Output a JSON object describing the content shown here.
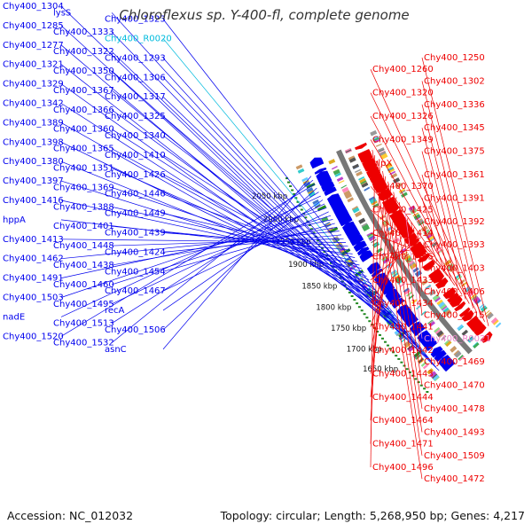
{
  "title": "Chloroflexus sp. Y-400-fl, complete genome",
  "accession": "Accession: NC_012032",
  "summary": "Topology: circular; Length: 5,268,950 bp; Genes: 4,217",
  "colors": {
    "forward": "#0000ee",
    "reverse": "#ee0000",
    "rna_forward": "#00bbdd",
    "rna_reverse": "#ee88cc",
    "backbone": "#777777",
    "tick": "#228822"
  },
  "ticks": [
    {
      "label": "1650 kbp"
    },
    {
      "label": "1700 kbp"
    },
    {
      "label": "1750 kbp"
    },
    {
      "label": "1800 kbp"
    },
    {
      "label": "1850 kbp"
    },
    {
      "label": "1900 kbp"
    },
    {
      "label": "1950 kbp"
    },
    {
      "label": "2000 kbp"
    },
    {
      "label": "2050 kbp"
    }
  ],
  "left_labels": [
    {
      "text": "Chy400_1304",
      "color": "forward"
    },
    {
      "text": "lysS",
      "color": "forward"
    },
    {
      "text": "Chy400_1323",
      "color": "forward"
    },
    {
      "text": "Chy400_1285",
      "color": "forward"
    },
    {
      "text": "Chy400_1333",
      "color": "forward"
    },
    {
      "text": "Chy400_R0020",
      "color": "rna_forward"
    },
    {
      "text": "Chy400_1277",
      "color": "forward"
    },
    {
      "text": "Chy400_1322",
      "color": "forward"
    },
    {
      "text": "Chy400_1293",
      "color": "forward"
    },
    {
      "text": "Chy400_1321",
      "color": "forward"
    },
    {
      "text": "Chy400_1350",
      "color": "forward"
    },
    {
      "text": "Chy400_1306",
      "color": "forward"
    },
    {
      "text": "Chy400_1329",
      "color": "forward"
    },
    {
      "text": "Chy400_1367",
      "color": "forward"
    },
    {
      "text": "Chy400_1317",
      "color": "forward"
    },
    {
      "text": "Chy400_1342",
      "color": "forward"
    },
    {
      "text": "Chy400_1366",
      "color": "forward"
    },
    {
      "text": "Chy400_1325",
      "color": "forward"
    },
    {
      "text": "Chy400_1389",
      "color": "forward"
    },
    {
      "text": "Chy400_1360",
      "color": "forward"
    },
    {
      "text": "Chy400_1340",
      "color": "forward"
    },
    {
      "text": "Chy400_1398",
      "color": "forward"
    },
    {
      "text": "Chy400_1365",
      "color": "forward"
    },
    {
      "text": "Chy400_1410",
      "color": "forward"
    },
    {
      "text": "Chy400_1380",
      "color": "forward"
    },
    {
      "text": "Chy400_1351",
      "color": "forward"
    },
    {
      "text": "Chy400_1426",
      "color": "forward"
    },
    {
      "text": "Chy400_1397",
      "color": "forward"
    },
    {
      "text": "Chy400_1369",
      "color": "forward"
    },
    {
      "text": "Chy400_1446",
      "color": "forward"
    },
    {
      "text": "Chy400_1416",
      "color": "forward"
    },
    {
      "text": "Chy400_1388",
      "color": "forward"
    },
    {
      "text": "Chy400_1449",
      "color": "forward"
    },
    {
      "text": "hppA",
      "color": "forward"
    },
    {
      "text": "Chy400_1401",
      "color": "forward"
    },
    {
      "text": "Chy400_1439",
      "color": "forward"
    },
    {
      "text": "Chy400_1413",
      "color": "forward"
    },
    {
      "text": "Chy400_1448",
      "color": "forward"
    },
    {
      "text": "Chy400_1424",
      "color": "forward"
    },
    {
      "text": "Chy400_1462",
      "color": "forward"
    },
    {
      "text": "Chy400_1438",
      "color": "forward"
    },
    {
      "text": "Chy400_1454",
      "color": "forward"
    },
    {
      "text": "Chy400_1491",
      "color": "forward"
    },
    {
      "text": "Chy400_1460",
      "color": "forward"
    },
    {
      "text": "Chy400_1467",
      "color": "forward"
    },
    {
      "text": "Chy400_1503",
      "color": "forward"
    },
    {
      "text": "Chy400_1495",
      "color": "forward"
    },
    {
      "text": "recA",
      "color": "forward"
    },
    {
      "text": "nadE",
      "color": "forward"
    },
    {
      "text": "Chy400_1513",
      "color": "forward"
    },
    {
      "text": "Chy400_1506",
      "color": "forward"
    },
    {
      "text": "Chy400_1520",
      "color": "forward"
    },
    {
      "text": "Chy400_1532",
      "color": "forward"
    },
    {
      "text": "asnC",
      "color": "forward"
    }
  ],
  "right_labels": [
    {
      "text": "Chy400_1250",
      "color": "reverse"
    },
    {
      "text": "Chy400_1260",
      "color": "reverse"
    },
    {
      "text": "Chy400_1302",
      "color": "reverse"
    },
    {
      "text": "Chy400_1320",
      "color": "reverse"
    },
    {
      "text": "Chy400_1336",
      "color": "reverse"
    },
    {
      "text": "Chy400_1326",
      "color": "reverse"
    },
    {
      "text": "Chy400_1345",
      "color": "reverse"
    },
    {
      "text": "Chy400_1349",
      "color": "reverse"
    },
    {
      "text": "Chy400_1375",
      "color": "reverse"
    },
    {
      "text": "glpX",
      "color": "reverse"
    },
    {
      "text": "Chy400_1361",
      "color": "reverse"
    },
    {
      "text": "Chy400_1370",
      "color": "reverse"
    },
    {
      "text": "Chy400_1391",
      "color": "reverse"
    },
    {
      "text": "Chy400_1425",
      "color": "reverse"
    },
    {
      "text": "Chy400_1392",
      "color": "reverse"
    },
    {
      "text": "Chy400_1414",
      "color": "reverse"
    },
    {
      "text": "Chy400_1393",
      "color": "reverse"
    },
    {
      "text": "Chy400_1445",
      "color": "reverse"
    },
    {
      "text": "Chy400_1403",
      "color": "reverse"
    },
    {
      "text": "Chy400_1433",
      "color": "reverse"
    },
    {
      "text": "Chy400_1406",
      "color": "reverse"
    },
    {
      "text": "Chy400_1434",
      "color": "reverse"
    },
    {
      "text": "Chy400_1415",
      "color": "reverse"
    },
    {
      "text": "Chy400_1441",
      "color": "reverse"
    },
    {
      "text": "Chy400_R0021",
      "color": "rna_reverse"
    },
    {
      "text": "Chy400_1442",
      "color": "reverse"
    },
    {
      "text": "Chy400_1469",
      "color": "reverse"
    },
    {
      "text": "Chy400_1443",
      "color": "reverse"
    },
    {
      "text": "Chy400_1470",
      "color": "reverse"
    },
    {
      "text": "Chy400_1444",
      "color": "reverse"
    },
    {
      "text": "Chy400_1478",
      "color": "reverse"
    },
    {
      "text": "Chy400_1464",
      "color": "reverse"
    },
    {
      "text": "Chy400_1493",
      "color": "reverse"
    },
    {
      "text": "Chy400_1471",
      "color": "reverse"
    },
    {
      "text": "Chy400_1509",
      "color": "reverse"
    },
    {
      "text": "Chy400_1496",
      "color": "reverse"
    },
    {
      "text": "Chy400_1472",
      "color": "reverse"
    }
  ]
}
